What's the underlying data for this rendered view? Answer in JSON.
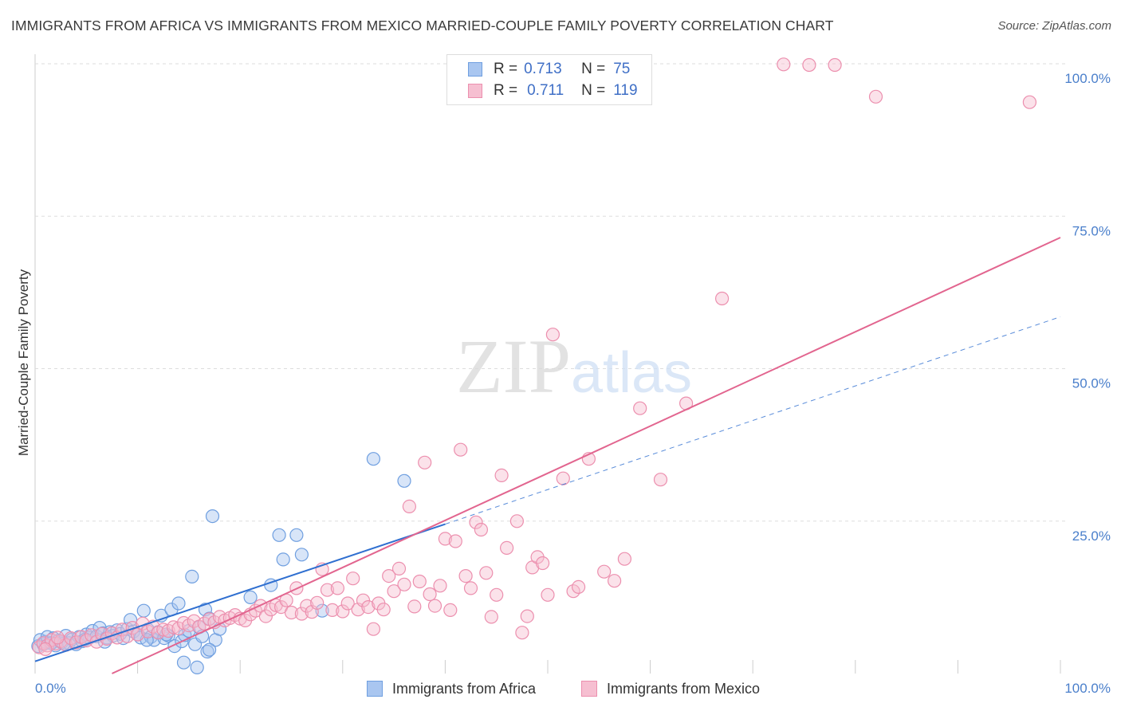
{
  "chart_data": {
    "type": "scatter",
    "title": "IMMIGRANTS FROM AFRICA VS IMMIGRANTS FROM MEXICO MARRIED-COUPLE FAMILY POVERTY CORRELATION CHART",
    "source": "Source: ZipAtlas.com",
    "ylabel": "Married-Couple Family Poverty",
    "xlabel": "",
    "xlim": [
      0,
      100
    ],
    "ylim": [
      0,
      100
    ],
    "x_tick_labels": [
      "0.0%",
      "100.0%"
    ],
    "y_ticks": [
      25,
      50,
      75,
      100
    ],
    "y_tick_labels": [
      "25.0%",
      "50.0%",
      "75.0%",
      "100.0%"
    ],
    "watermark": "ZIPatlas",
    "legend": {
      "r_label": "R =",
      "n_label": "N =",
      "entries": [
        {
          "r": "0.713",
          "n": "75"
        },
        {
          "r": "0.711",
          "n": "119"
        }
      ]
    },
    "series": [
      {
        "name": "Immigrants from Africa",
        "color": "#6f9fe0",
        "fill": "#a9c6f0",
        "line_color": "#2f6fd0",
        "trend": {
          "x0": 0,
          "y0": 2,
          "x1": 40,
          "y1": 24.5,
          "dash_to_x": 100,
          "dash_to_y": 58.5
        },
        "points": [
          [
            0.3,
            4.5
          ],
          [
            0.5,
            5.5
          ],
          [
            0.8,
            4.8
          ],
          [
            1.0,
            5.2
          ],
          [
            1.2,
            6.0
          ],
          [
            1.5,
            5.0
          ],
          [
            1.8,
            5.8
          ],
          [
            2.0,
            4.6
          ],
          [
            2.3,
            5.4
          ],
          [
            2.6,
            5.1
          ],
          [
            3.0,
            6.2
          ],
          [
            3.3,
            5.0
          ],
          [
            3.6,
            5.6
          ],
          [
            4.0,
            4.8
          ],
          [
            4.3,
            6.0
          ],
          [
            4.6,
            5.3
          ],
          [
            5.0,
            6.4
          ],
          [
            5.3,
            5.9
          ],
          [
            5.6,
            7.0
          ],
          [
            6.0,
            6.1
          ],
          [
            6.3,
            7.5
          ],
          [
            6.6,
            6.6
          ],
          [
            7.0,
            5.9
          ],
          [
            7.3,
            6.8
          ],
          [
            7.6,
            6.2
          ],
          [
            8.0,
            7.1
          ],
          [
            8.3,
            6.5
          ],
          [
            8.6,
            5.8
          ],
          [
            9.0,
            7.3
          ],
          [
            9.3,
            8.8
          ],
          [
            9.6,
            6.9
          ],
          [
            10.0,
            6.4
          ],
          [
            10.3,
            5.9
          ],
          [
            10.6,
            10.3
          ],
          [
            11.0,
            7.2
          ],
          [
            11.3,
            6.0
          ],
          [
            11.6,
            5.5
          ],
          [
            12.0,
            6.8
          ],
          [
            12.3,
            9.5
          ],
          [
            12.6,
            5.8
          ],
          [
            13.0,
            6.2
          ],
          [
            13.3,
            10.5
          ],
          [
            13.6,
            4.5
          ],
          [
            14.0,
            11.5
          ],
          [
            14.3,
            5.3
          ],
          [
            14.6,
            6.3
          ],
          [
            15.0,
            7.0
          ],
          [
            15.3,
            15.9
          ],
          [
            15.6,
            4.8
          ],
          [
            16.0,
            7.6
          ],
          [
            16.3,
            6.1
          ],
          [
            16.6,
            10.5
          ],
          [
            17.0,
            9.0
          ],
          [
            17.3,
            25.8
          ],
          [
            17.6,
            5.5
          ],
          [
            18.0,
            7.3
          ],
          [
            21.0,
            12.5
          ],
          [
            23.0,
            14.5
          ],
          [
            23.8,
            22.7
          ],
          [
            24.2,
            18.7
          ],
          [
            25.5,
            22.7
          ],
          [
            26.0,
            19.5
          ],
          [
            28.0,
            10.3
          ],
          [
            33.0,
            35.2
          ],
          [
            36.0,
            31.6
          ],
          [
            14.5,
            1.8
          ],
          [
            15.8,
            1.0
          ],
          [
            16.8,
            3.6
          ],
          [
            17.0,
            3.9
          ],
          [
            12.8,
            6.4
          ],
          [
            10.9,
            5.5
          ],
          [
            6.8,
            5.2
          ],
          [
            4.9,
            5.6
          ],
          [
            2.8,
            4.9
          ],
          [
            1.6,
            5.0
          ]
        ]
      },
      {
        "name": "Immigrants from Mexico",
        "color": "#ec8fae",
        "fill": "#f6bfd1",
        "line_color": "#e2658f",
        "trend": {
          "x0": 7.5,
          "y0": 0,
          "x1": 100,
          "y1": 71.5
        },
        "points": [
          [
            0.4,
            4.3
          ],
          [
            0.8,
            5.0
          ],
          [
            1.2,
            4.6
          ],
          [
            1.6,
            5.5
          ],
          [
            2.0,
            4.9
          ],
          [
            2.5,
            5.3
          ],
          [
            3.0,
            4.7
          ],
          [
            3.5,
            5.8
          ],
          [
            4.0,
            5.1
          ],
          [
            4.5,
            6.0
          ],
          [
            5.0,
            5.4
          ],
          [
            5.5,
            6.3
          ],
          [
            6.0,
            5.2
          ],
          [
            6.5,
            6.5
          ],
          [
            7.0,
            5.7
          ],
          [
            7.5,
            6.6
          ],
          [
            8.0,
            5.9
          ],
          [
            8.5,
            7.2
          ],
          [
            9.0,
            6.1
          ],
          [
            9.5,
            7.5
          ],
          [
            10.0,
            6.4
          ],
          [
            10.5,
            8.2
          ],
          [
            11.0,
            6.9
          ],
          [
            11.5,
            7.7
          ],
          [
            12.0,
            6.7
          ],
          [
            12.5,
            7.2
          ],
          [
            13.0,
            7.0
          ],
          [
            13.5,
            7.6
          ],
          [
            14.0,
            7.4
          ],
          [
            14.5,
            8.3
          ],
          [
            15.0,
            7.9
          ],
          [
            15.5,
            8.6
          ],
          [
            16.0,
            7.7
          ],
          [
            16.5,
            8.2
          ],
          [
            17.0,
            8.9
          ],
          [
            17.5,
            8.4
          ],
          [
            18.0,
            9.3
          ],
          [
            18.5,
            8.7
          ],
          [
            19.0,
            9.1
          ],
          [
            19.5,
            9.6
          ],
          [
            20.0,
            9.0
          ],
          [
            20.5,
            8.7
          ],
          [
            21.0,
            9.7
          ],
          [
            21.5,
            10.3
          ],
          [
            22.0,
            11.1
          ],
          [
            22.5,
            9.4
          ],
          [
            23.0,
            10.5
          ],
          [
            23.5,
            11.2
          ],
          [
            24.0,
            10.9
          ],
          [
            24.5,
            12.0
          ],
          [
            25.0,
            10.0
          ],
          [
            25.5,
            14.0
          ],
          [
            26.0,
            9.8
          ],
          [
            26.5,
            11.1
          ],
          [
            27.0,
            10.1
          ],
          [
            27.5,
            11.6
          ],
          [
            28.0,
            17.1
          ],
          [
            28.5,
            13.7
          ],
          [
            29.0,
            10.4
          ],
          [
            29.5,
            14.0
          ],
          [
            30.0,
            10.2
          ],
          [
            30.5,
            11.5
          ],
          [
            31.0,
            15.6
          ],
          [
            31.5,
            10.5
          ],
          [
            32.0,
            12.0
          ],
          [
            32.5,
            10.9
          ],
          [
            33.0,
            7.3
          ],
          [
            33.5,
            11.5
          ],
          [
            34.0,
            10.5
          ],
          [
            34.5,
            16.0
          ],
          [
            35.0,
            13.5
          ],
          [
            35.5,
            17.2
          ],
          [
            36.0,
            14.6
          ],
          [
            36.5,
            27.4
          ],
          [
            37.0,
            11.0
          ],
          [
            37.5,
            15.1
          ],
          [
            38.0,
            34.6
          ],
          [
            38.5,
            13.0
          ],
          [
            39.0,
            11.1
          ],
          [
            39.5,
            14.4
          ],
          [
            40.0,
            22.1
          ],
          [
            40.5,
            10.4
          ],
          [
            41.0,
            21.7
          ],
          [
            41.5,
            36.7
          ],
          [
            42.0,
            16.0
          ],
          [
            42.5,
            14.0
          ],
          [
            43.0,
            24.8
          ],
          [
            43.5,
            23.6
          ],
          [
            44.0,
            16.5
          ],
          [
            44.5,
            9.3
          ],
          [
            45.0,
            12.9
          ],
          [
            45.5,
            32.5
          ],
          [
            46.0,
            20.6
          ],
          [
            47.0,
            25.0
          ],
          [
            47.5,
            6.7
          ],
          [
            48.0,
            9.4
          ],
          [
            48.5,
            17.4
          ],
          [
            49.0,
            19.1
          ],
          [
            49.5,
            18.1
          ],
          [
            50.0,
            12.9
          ],
          [
            51.5,
            32.0
          ],
          [
            52.5,
            13.5
          ],
          [
            53.0,
            14.2
          ],
          [
            54.0,
            35.2
          ],
          [
            55.5,
            16.7
          ],
          [
            56.5,
            15.2
          ],
          [
            57.5,
            18.8
          ],
          [
            59.0,
            43.5
          ],
          [
            61.0,
            31.8
          ],
          [
            63.5,
            44.3
          ],
          [
            50.5,
            55.6
          ],
          [
            67.0,
            61.5
          ],
          [
            82.0,
            94.6
          ],
          [
            97.0,
            93.7
          ],
          [
            73.0,
            99.9
          ],
          [
            75.5,
            99.8
          ],
          [
            78.0,
            99.8
          ],
          [
            1.0,
            4.0
          ],
          [
            2.2,
            5.9
          ]
        ]
      }
    ]
  }
}
